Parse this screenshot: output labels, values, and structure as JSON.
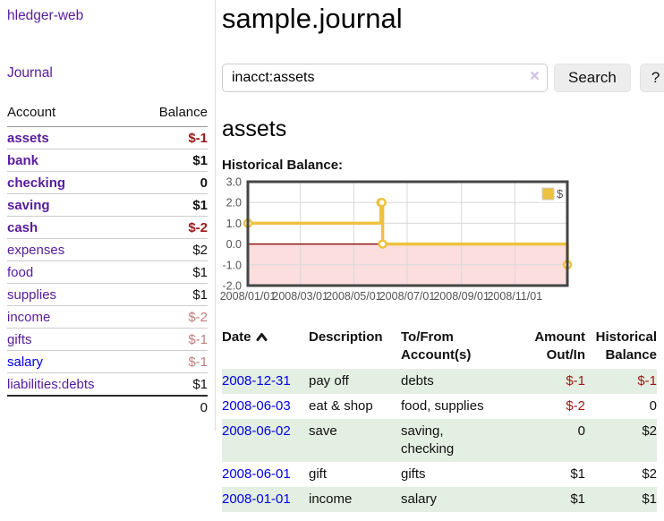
{
  "app": {
    "brand": "hledger-web",
    "nav_journal": "Journal"
  },
  "sidebar": {
    "header": {
      "account": "Account",
      "balance": "Balance"
    },
    "accounts": [
      {
        "name": "assets",
        "balance": "$-1"
      },
      {
        "name": "bank",
        "balance": "$1"
      },
      {
        "name": "checking",
        "balance": "0"
      },
      {
        "name": "saving",
        "balance": "$1"
      },
      {
        "name": "cash",
        "balance": "$-2"
      },
      {
        "name": "expenses",
        "balance": "$2"
      },
      {
        "name": "food",
        "balance": "$1"
      },
      {
        "name": "supplies",
        "balance": "$1"
      },
      {
        "name": "income",
        "balance": "$-2"
      },
      {
        "name": "gifts",
        "balance": "$-1"
      },
      {
        "name": "salary",
        "balance": "$-1"
      },
      {
        "name": "liabilities:debts",
        "balance": "$1"
      }
    ],
    "total": "0"
  },
  "main": {
    "title": "sample.journal",
    "search": {
      "value": "inacct:assets",
      "clear_icon": "×",
      "button_label": "Search",
      "help_label": "?"
    },
    "account_heading": "assets",
    "chart_label": "Historical Balance:"
  },
  "chart_data": {
    "type": "line",
    "mode": "step-after",
    "title": "Historical Balance",
    "series": [
      {
        "name": "$",
        "color": "#edc240",
        "points": [
          [
            "2008-01-01",
            1
          ],
          [
            "2008-06-01",
            2
          ],
          [
            "2008-06-02",
            2
          ],
          [
            "2008-06-03",
            0
          ],
          [
            "2008-12-31",
            -1
          ]
        ]
      }
    ],
    "x_range": [
      "2008-01-01",
      "2008-12-31"
    ],
    "x_ticks": [
      "2008/01/01",
      "2008/03/01",
      "2008/05/01",
      "2008/07/01",
      "2008/09/01",
      "2008/11/01"
    ],
    "y_ticks": [
      3.0,
      2.0,
      1.0,
      0.0,
      -1.0,
      -2.0
    ],
    "ylim": [
      -2,
      3
    ],
    "grid": true,
    "negative_region_color": "#fcdede",
    "zero_line_color": "#8c1717",
    "legend": {
      "label": "$",
      "position": "top-right"
    }
  },
  "register": {
    "columns": {
      "date": "Date",
      "description": "Description",
      "tofrom": "To/From Account(s)",
      "amount": "Amount Out/In",
      "balance": "Historical Balance"
    },
    "rows": [
      {
        "date": "2008-12-31",
        "description": "pay off",
        "accounts": "debts",
        "amount": "$-1",
        "balance": "$-1"
      },
      {
        "date": "2008-06-03",
        "description": "eat & shop",
        "accounts": "food, supplies",
        "amount": "$-2",
        "balance": "0"
      },
      {
        "date": "2008-06-02",
        "description": "save",
        "accounts": "saving, checking",
        "amount": "0",
        "balance": "$2"
      },
      {
        "date": "2008-06-01",
        "description": "gift",
        "accounts": "gifts",
        "amount": "$1",
        "balance": "$2"
      },
      {
        "date": "2008-01-01",
        "description": "income",
        "accounts": "salary",
        "amount": "$1",
        "balance": "$1"
      }
    ]
  }
}
